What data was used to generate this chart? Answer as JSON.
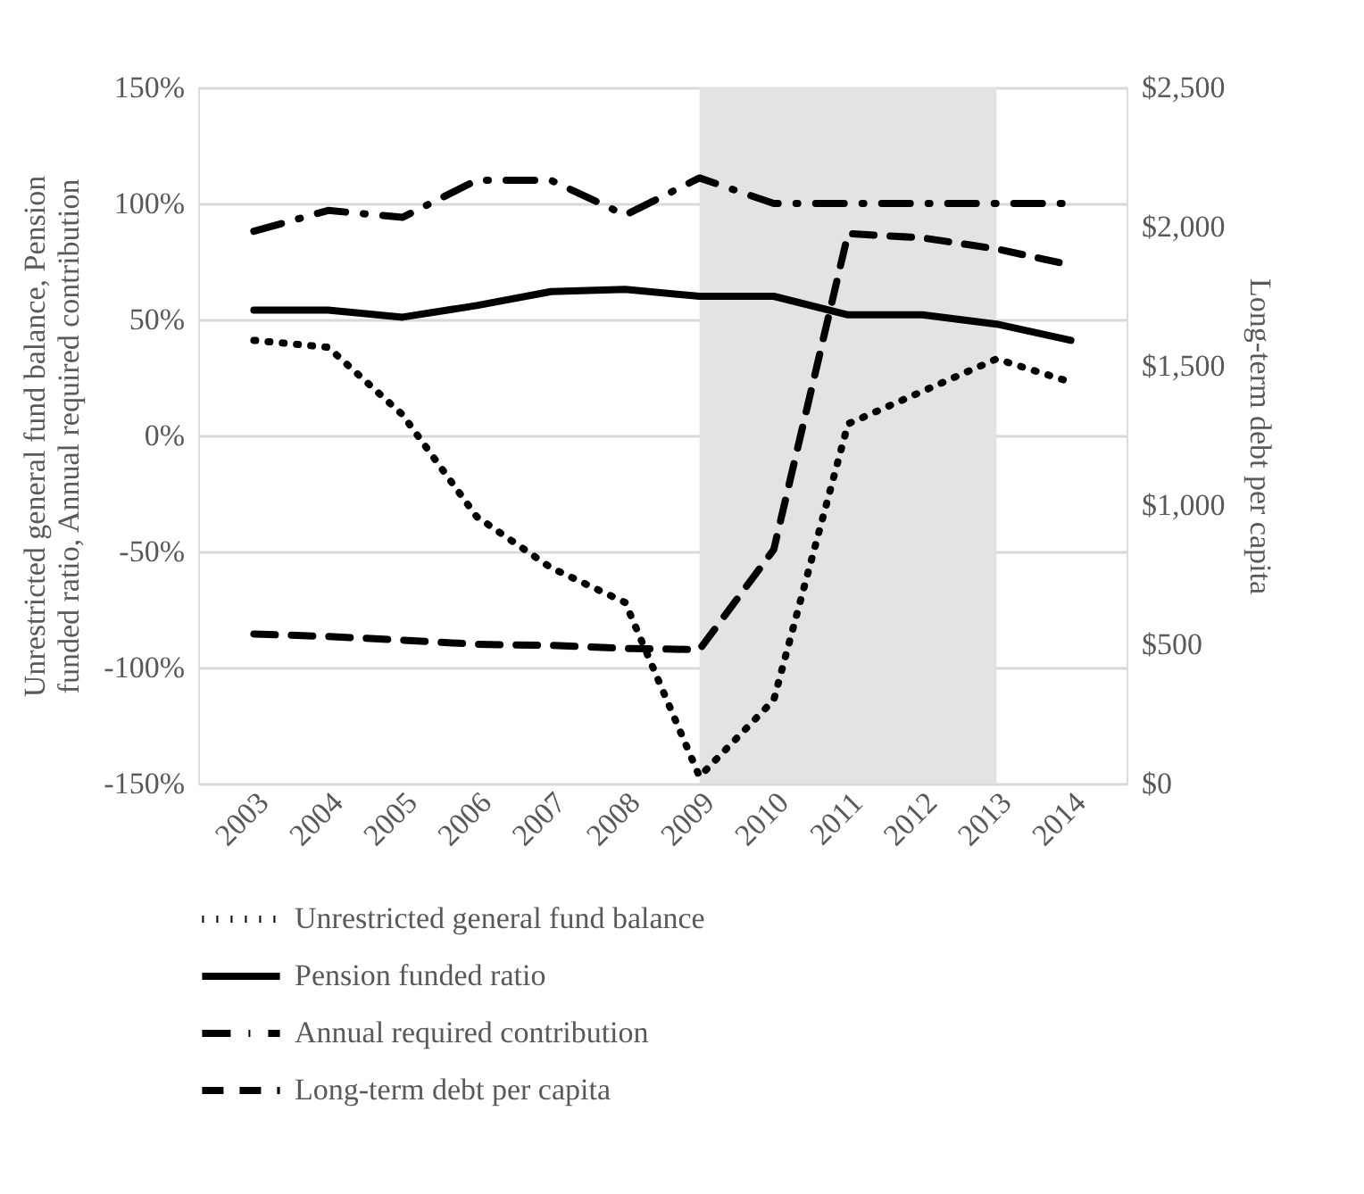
{
  "chart_data": {
    "type": "line",
    "ylabel": "Unrestricted general fund balance, Pension funded ratio, Annual required contribution",
    "y2label": "Long-term debt per capita",
    "categories": [
      "2003",
      "2004",
      "2005",
      "2006",
      "2007",
      "2008",
      "2009",
      "2010",
      "2011",
      "2012",
      "2013",
      "2014"
    ],
    "series": [
      {
        "name": "Unrestricted general fund balance",
        "color": "#000000",
        "line_style": "dotted",
        "values": [
          41,
          38,
          9,
          -35,
          -57,
          -72,
          -147,
          -114,
          5,
          19,
          33,
          23
        ]
      },
      {
        "name": "Pension funded ratio",
        "color": "#000000",
        "line_style": "solid",
        "values": [
          54,
          54,
          51,
          56,
          62,
          63,
          60,
          60,
          52,
          52,
          48,
          41
        ]
      },
      {
        "name": "Annual required contribution",
        "color": "#000000",
        "line_style": "dashdot",
        "values": [
          88,
          97,
          94,
          110,
          110,
          95,
          111,
          100,
          100,
          100,
          100,
          100
        ]
      },
      {
        "name": "Long-term debt per capita",
        "color": "#000000",
        "line_style": "dashed",
        "axis": "y2",
        "values": [
          537,
          528,
          515,
          500,
          496,
          485,
          481,
          840,
          1975,
          1960,
          1920,
          1862
        ]
      }
    ],
    "ylim": [
      -150,
      150
    ],
    "yticks": [
      {
        "value": -150,
        "label": "-150%"
      },
      {
        "value": -100,
        "label": "-100%"
      },
      {
        "value": -50,
        "label": "-50%"
      },
      {
        "value": 0,
        "label": "0%"
      },
      {
        "value": 50,
        "label": "50%"
      },
      {
        "value": 100,
        "label": "100%"
      },
      {
        "value": 150,
        "label": "150%"
      }
    ],
    "y2lim": [
      0,
      2500
    ],
    "y2ticks": [
      {
        "value": 0,
        "label": "$0"
      },
      {
        "value": 500,
        "label": "$500"
      },
      {
        "value": 1000,
        "label": "$1,000"
      },
      {
        "value": 1500,
        "label": "$1,500"
      },
      {
        "value": 2000,
        "label": "$2,000"
      },
      {
        "value": 2500,
        "label": "$2,500"
      }
    ],
    "bands": [
      {
        "axis": "x",
        "from": "2009",
        "to": "2013",
        "color": "#e3e3e3"
      }
    ],
    "grid": "y",
    "legend": "bottom"
  }
}
